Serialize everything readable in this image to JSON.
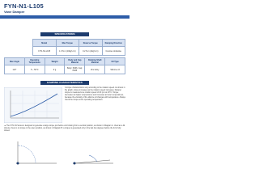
{
  "header": {
    "title": "FYN-N1-L105",
    "subtitle": "Vane Damper"
  },
  "specifications": {
    "title": "SPECIFICATIONS",
    "table1": {
      "headers": [
        "Model",
        "Max Torque",
        "Reverse Torque",
        "Damping Direction"
      ],
      "rows": [
        [
          "FYN-N1-L105",
          "1.0 N·m (10kgf·cm)",
          "0.2 N·m (2kgf·cm)",
          "Counter-clockwise"
        ]
      ]
    },
    "table2": {
      "headers": [
        "Max Angle",
        "Operating Temperature",
        "Weight",
        "Body and Cap Material",
        "Rotating Shaft Material",
        "Oil Type"
      ],
      "rows": [
        [
          "110°",
          "5 ~ 50°C",
          "9 g",
          "Body: PA66, Cap: PA66",
          "Zinc alloy",
          "Silicone oil"
        ]
      ]
    }
  },
  "damping": {
    "title": "DAMPING CHARACTERISTICS",
    "text": "A torque characteristics vary according to the rotation speed. As shown in the graph, torque increases as the rotation speed increases. Damper torque is measured at a rotation speed of 20 rpm at 23°C. Torque decreases at higher temperatures and increases at lower temperatures, because the viscosity of the silicone oil changes with temperature. Always check the torque at the operating temperature."
  },
  "note": {
    "text": "▲ The FYN-N1 Series is designed to generate a large torque just before a lid closing from a vertical position, as shown in Diagram A. Used as a lid closure, there is no torque in the open position, as shown in Diagram B; a torque is generated only in the last few degrees before the lid is fully closed."
  }
}
